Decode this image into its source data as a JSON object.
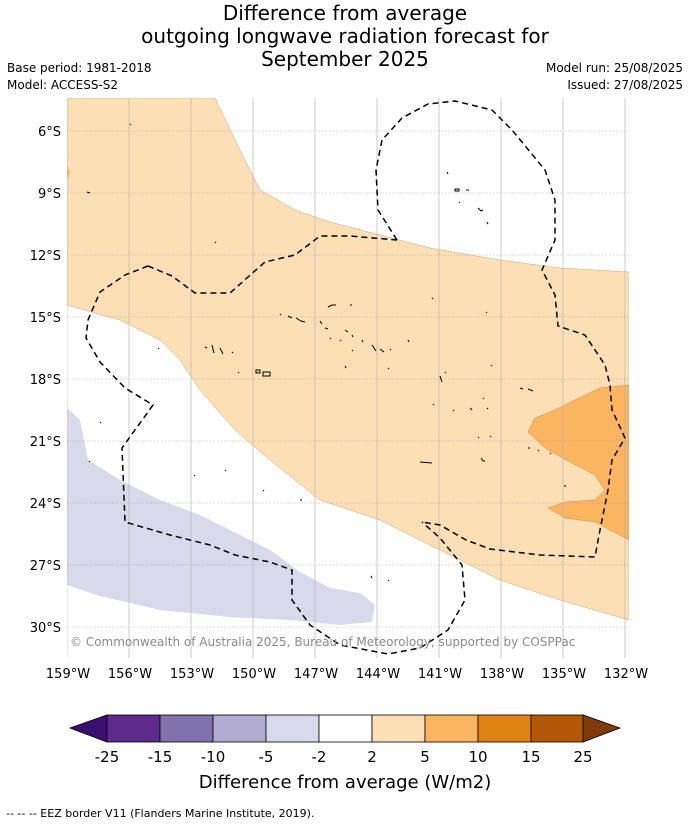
{
  "header": {
    "title_line1": "Difference from average",
    "title_line2": "outgoing longwave radiation forecast for",
    "title_line3": "September 2025",
    "base_period": "Base period: 1981-2018",
    "model": "Model: ACCESS-S2",
    "model_run": "Model run: 25/08/2025",
    "issued": "Issued: 27/08/2025"
  },
  "map": {
    "copyright": "© Commonwealth of Australia 2025, Bureau of Meteorology, supported by COSPPac",
    "lat_labels": [
      "6°S",
      "9°S",
      "12°S",
      "15°S",
      "18°S",
      "21°S",
      "24°S",
      "27°S",
      "30°S"
    ],
    "lon_labels": [
      "159°W",
      "156°W",
      "153°W",
      "150°W",
      "147°W",
      "144°W",
      "141°W",
      "138°W",
      "135°W",
      "132°W"
    ],
    "colors": {
      "neg_25": "#3b0f6f",
      "neg_15_25": "#5e2a8c",
      "neg_10_15": "#8072ad",
      "neg_5_10": "#b2abd2",
      "neg_2_5": "#d8daeb",
      "neutral": "#ffffff",
      "pos_2_5": "#fddfb5",
      "pos_5_10": "#fbb560",
      "pos_10_15": "#e08214",
      "pos_15_25": "#b35806",
      "pos_25": "#7f3b08"
    }
  },
  "colorbar": {
    "ticks": [
      "-25",
      "-15",
      "-10",
      "-5",
      "-2",
      "2",
      "5",
      "10",
      "15",
      "25"
    ],
    "label": "Difference from average (W/m2)"
  },
  "footnote": "--  --  -- EEZ border V11 (Flanders Marine Institute, 2019)."
}
